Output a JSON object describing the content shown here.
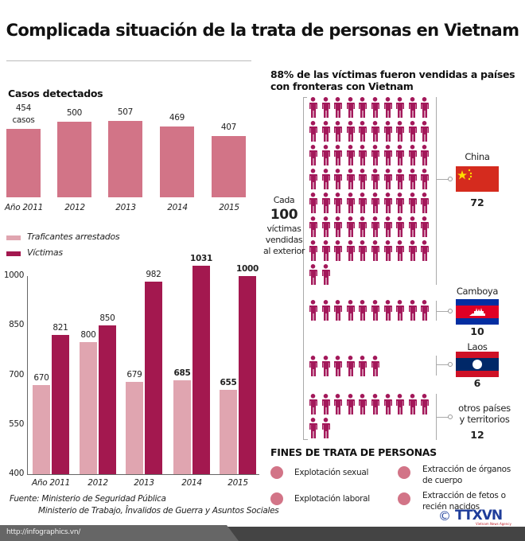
{
  "title": "Complicada situación de la trata de personas en Vietnam",
  "colors": {
    "cases": "#d27487",
    "arrested": "#e0a5b0",
    "victims": "#a3184f",
    "people": "#a3185a"
  },
  "chart_data": [
    {
      "type": "bar",
      "title": "Casos detectados",
      "categories": [
        "Año 2011",
        "2012",
        "2013",
        "2014",
        "2015"
      ],
      "values": [
        454,
        500,
        507,
        469,
        407
      ],
      "first_value_unit": "casos",
      "ylim": [
        0,
        507
      ]
    },
    {
      "type": "bar",
      "categories": [
        "Año 2011",
        "2012",
        "2013",
        "2014",
        "2015"
      ],
      "series": [
        {
          "name": "Traficantes arrestados",
          "values": [
            670,
            800,
            679,
            685,
            655
          ]
        },
        {
          "name": "Víctimas",
          "values": [
            821,
            850,
            982,
            1031,
            1000
          ]
        }
      ],
      "yticks": [
        "1000",
        "850",
        "700",
        "550",
        "400"
      ],
      "ylim": [
        400,
        1000
      ],
      "legend": "top-left"
    }
  ],
  "source": {
    "line1": "Fuente: Ministerio de Seguridad Pública",
    "line2": "Ministerio de Trabajo, Învalidos de Guerra y Asuntos Sociales"
  },
  "pictogram": {
    "heading": "88% de las víctimas fueron vendidas a países con fronteras con Vietnam",
    "cada": "Cada",
    "hundred": "100",
    "desc1": "víctimas",
    "desc2": "vendidas",
    "desc3": "al exterior",
    "groups": [
      {
        "label": "China",
        "count": 72,
        "count_label": "72",
        "icon": "china-flag"
      },
      {
        "label": "Camboya",
        "count": 10,
        "count_label": "10",
        "icon": "cambodia-flag"
      },
      {
        "label": "Laos",
        "count": 6,
        "count_label": "6",
        "icon": "laos-flag"
      },
      {
        "label": "otros países",
        "label2": "y territorios",
        "count": 12,
        "count_label": "12",
        "icon": "none"
      }
    ]
  },
  "purposes": {
    "heading": "FINES DE TRATA DE PERSONAS",
    "items": [
      {
        "l1": "Explotación sexual",
        "l2": ""
      },
      {
        "l1": "Explotación laboral",
        "l2": ""
      },
      {
        "l1": "Extracción de órganos",
        "l2": "de cuerpo"
      },
      {
        "l1": "Extracción de fetos o",
        "l2": "recién nacidos"
      }
    ]
  },
  "footer": {
    "url": "http://infographics.vn/",
    "logo": "TTXVN",
    "logo_sub": "Vietnam News Agency",
    "copyright": "©"
  }
}
